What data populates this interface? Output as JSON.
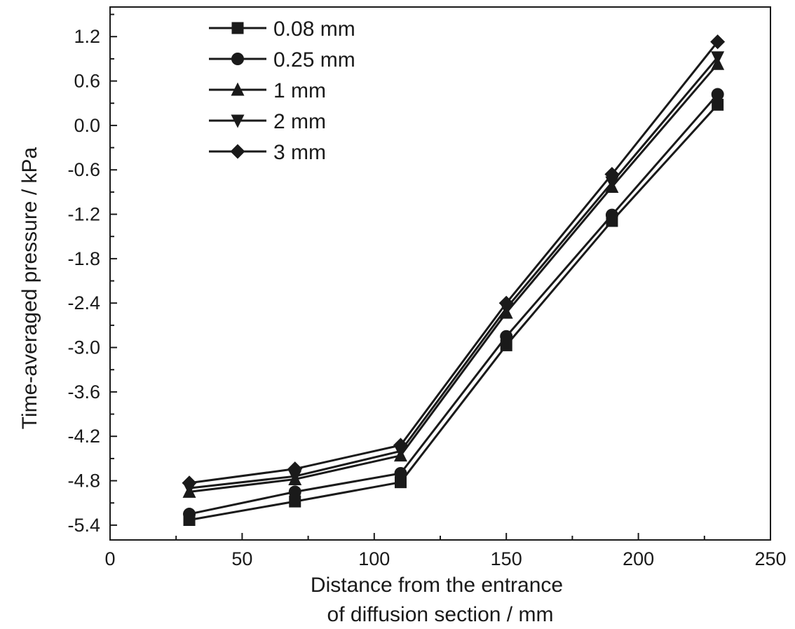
{
  "chart_data": {
    "type": "line",
    "xlabel_line1": "Distance from the entrance",
    "xlabel_line2": "of diffusion section / mm",
    "ylabel": "Time-averaged pressure / kPa",
    "xlim": [
      0,
      250
    ],
    "ylim": [
      -5.6,
      1.6
    ],
    "x_ticks": [
      0,
      50,
      100,
      150,
      200,
      250
    ],
    "x_tick_labels": [
      "0",
      "50",
      "100",
      "150",
      "200",
      "250"
    ],
    "y_ticks": [
      1.2,
      0.6,
      0.0,
      -0.6,
      -1.2,
      -1.8,
      -2.4,
      -3.0,
      -3.6,
      -4.2,
      -4.8,
      -5.4
    ],
    "y_tick_labels": [
      "1.2",
      "0.6",
      "0.0",
      "-0.6",
      "-1.2",
      "-1.8",
      "-2.4",
      "-3.0",
      "-3.6",
      "-4.2",
      "-4.8",
      "-5.4"
    ],
    "grid": false,
    "legend_position": "top-left",
    "x": [
      30,
      70,
      110,
      150,
      190,
      230
    ],
    "series": [
      {
        "name": "0.08 mm",
        "marker": "square",
        "values": [
          -5.33,
          -5.08,
          -4.82,
          -2.97,
          -1.29,
          0.28
        ]
      },
      {
        "name": "0.25 mm",
        "marker": "circle",
        "values": [
          -5.25,
          -4.95,
          -4.7,
          -2.85,
          -1.21,
          0.42
        ]
      },
      {
        "name": "1 mm",
        "marker": "triangle-up",
        "values": [
          -4.95,
          -4.78,
          -4.46,
          -2.53,
          -0.83,
          0.83
        ]
      },
      {
        "name": "2 mm",
        "marker": "triangle-down",
        "values": [
          -4.9,
          -4.74,
          -4.4,
          -2.47,
          -0.77,
          0.92
        ]
      },
      {
        "name": "3 mm",
        "marker": "diamond",
        "values": [
          -4.83,
          -4.64,
          -4.32,
          -2.4,
          -0.66,
          1.13
        ]
      }
    ],
    "colors": {
      "line": "#1a1a1a",
      "marker": "#1a1a1a",
      "axis": "#1a1a1a"
    }
  }
}
